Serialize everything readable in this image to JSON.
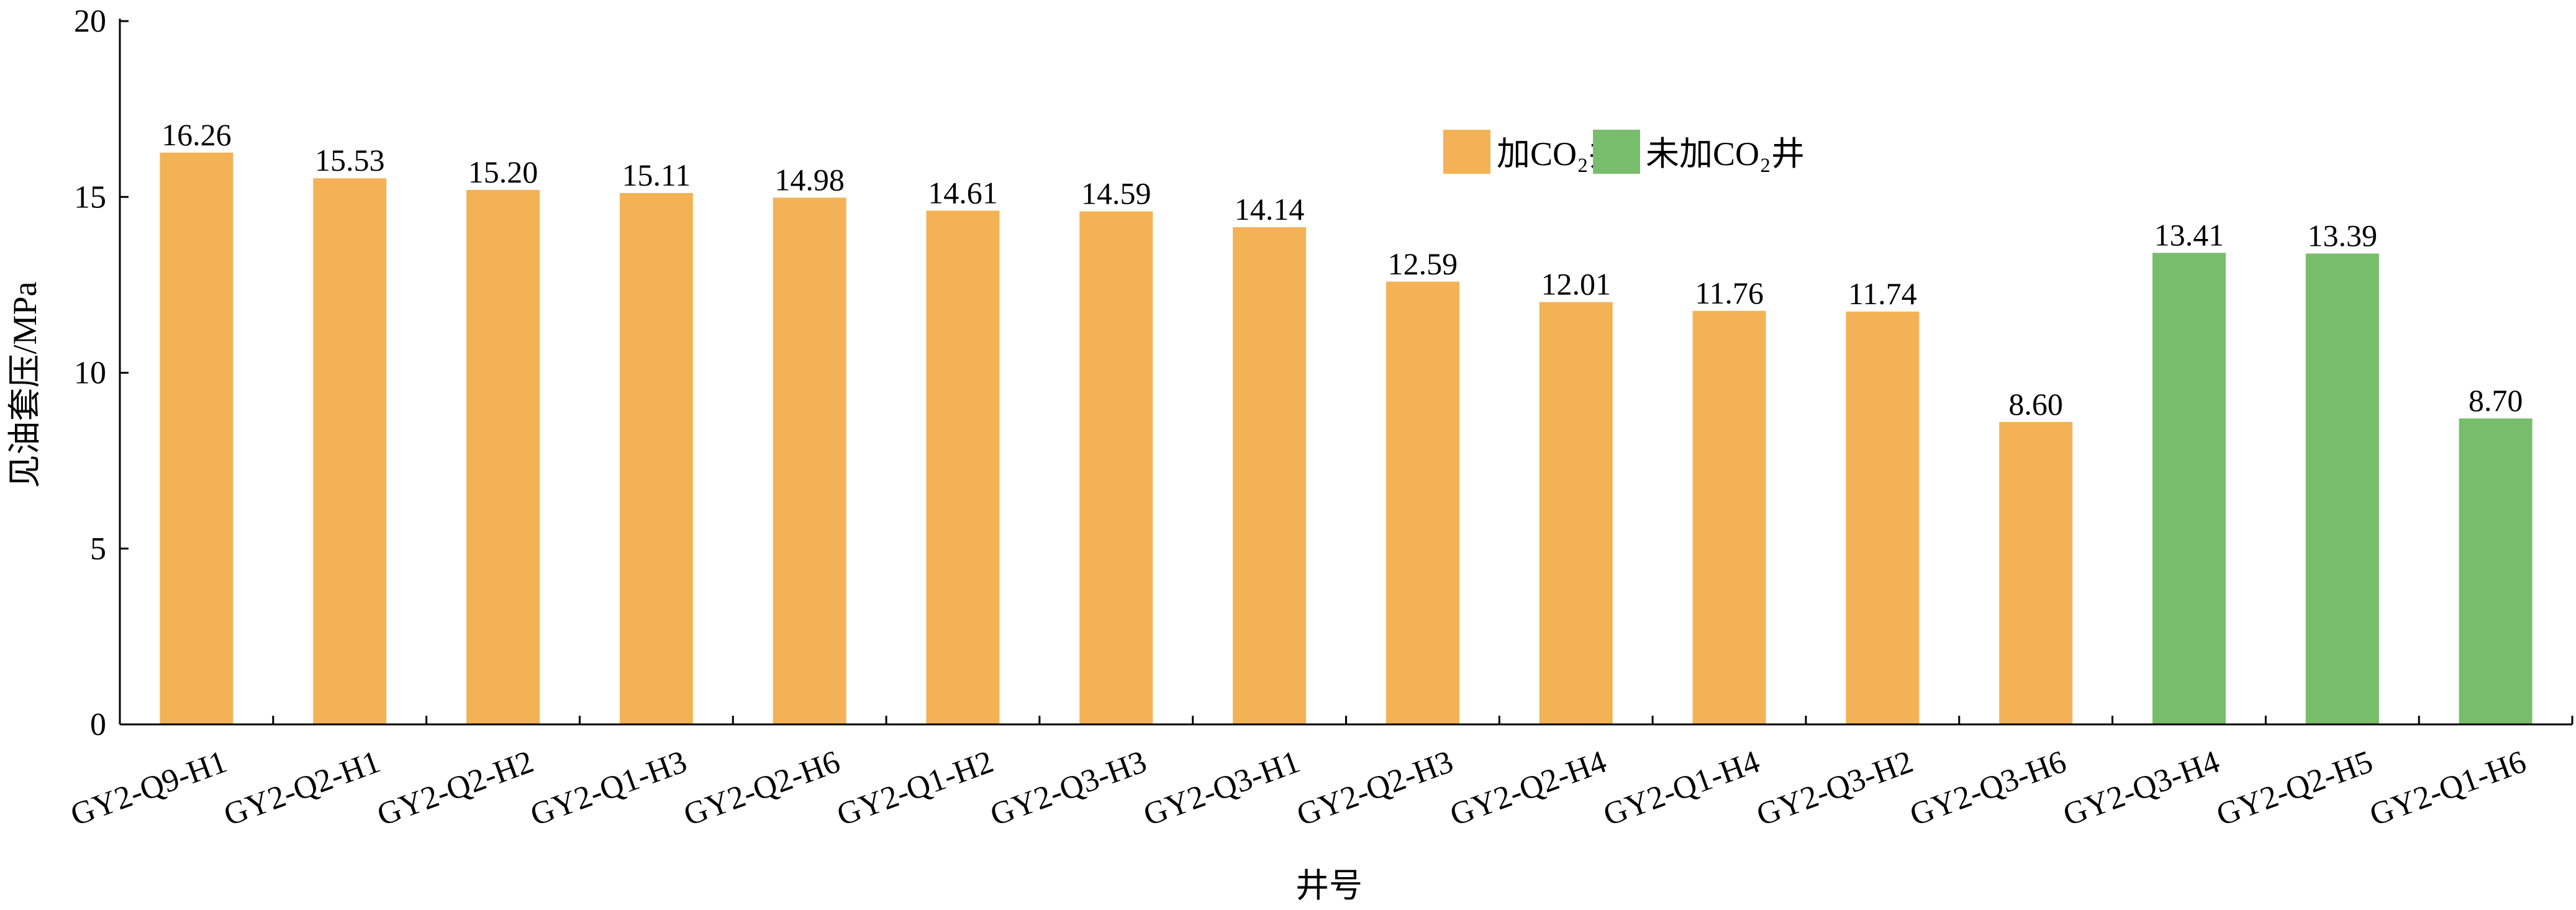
{
  "chart_data": {
    "type": "bar",
    "title": "",
    "xlabel": "井号",
    "ylabel": "见油套压/MPa",
    "ylim": [
      0,
      20
    ],
    "yticks": [
      0,
      5,
      10,
      15,
      20
    ],
    "grid": false,
    "legend_position": "top-right",
    "categories": [
      "GY2-Q9-H1",
      "GY2-Q2-H1",
      "GY2-Q2-H2",
      "GY2-Q1-H3",
      "GY2-Q2-H6",
      "GY2-Q1-H2",
      "GY2-Q3-H3",
      "GY2-Q3-H1",
      "GY2-Q2-H3",
      "GY2-Q2-H4",
      "GY2-Q1-H4",
      "GY2-Q3-H2",
      "GY2-Q3-H6",
      "GY2-Q3-H4",
      "GY2-Q2-H5",
      "GY2-Q1-H6"
    ],
    "values": [
      16.26,
      15.53,
      15.2,
      15.11,
      14.98,
      14.61,
      14.59,
      14.14,
      12.59,
      12.01,
      11.76,
      11.74,
      8.6,
      13.41,
      13.39,
      8.7
    ],
    "value_labels": [
      "16.26",
      "15.53",
      "15.20",
      "15.11",
      "14.98",
      "14.61",
      "14.59",
      "14.14",
      "12.59",
      "12.01",
      "11.76",
      "11.74",
      "8.60",
      "13.41",
      "13.39",
      "8.70"
    ],
    "group": [
      0,
      0,
      0,
      0,
      0,
      0,
      0,
      0,
      0,
      0,
      0,
      0,
      0,
      1,
      1,
      1
    ],
    "series": [
      {
        "name": "加CO₂井",
        "color": "#F4B256"
      },
      {
        "name": "未加CO₂井",
        "color": "#78BD6C"
      }
    ]
  }
}
